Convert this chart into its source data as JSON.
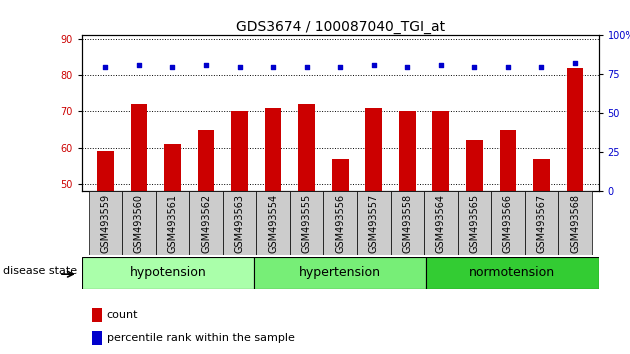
{
  "title": "GDS3674 / 100087040_TGI_at",
  "categories": [
    "GSM493559",
    "GSM493560",
    "GSM493561",
    "GSM493562",
    "GSM493563",
    "GSM493554",
    "GSM493555",
    "GSM493556",
    "GSM493557",
    "GSM493558",
    "GSM493564",
    "GSM493565",
    "GSM493566",
    "GSM493567",
    "GSM493568"
  ],
  "red_values": [
    59,
    72,
    61,
    65,
    70,
    71,
    72,
    57,
    71,
    70,
    70,
    62,
    65,
    57,
    82
  ],
  "blue_values": [
    80,
    81,
    80,
    81,
    80,
    80,
    80,
    80,
    81,
    80,
    81,
    80,
    80,
    80,
    82
  ],
  "groups": [
    {
      "label": "hypotension",
      "start": 0,
      "end": 5,
      "color": "#aaffaa"
    },
    {
      "label": "hypertension",
      "start": 5,
      "end": 10,
      "color": "#77ee77"
    },
    {
      "label": "normotension",
      "start": 10,
      "end": 15,
      "color": "#33cc33"
    }
  ],
  "ylim_left": [
    48,
    91
  ],
  "ylim_right": [
    0,
    100
  ],
  "yticks_left": [
    50,
    60,
    70,
    80,
    90
  ],
  "yticks_right": [
    0,
    25,
    50,
    75,
    100
  ],
  "bar_color": "#cc0000",
  "dot_color": "#0000cc",
  "xtick_bg": "#cccccc",
  "legend_items": [
    {
      "label": "count",
      "color": "#cc0000"
    },
    {
      "label": "percentile rank within the sample",
      "color": "#0000cc"
    }
  ],
  "disease_state_label": "disease state",
  "title_fontsize": 10,
  "tick_fontsize": 7,
  "label_fontsize": 8,
  "group_fontsize": 9
}
